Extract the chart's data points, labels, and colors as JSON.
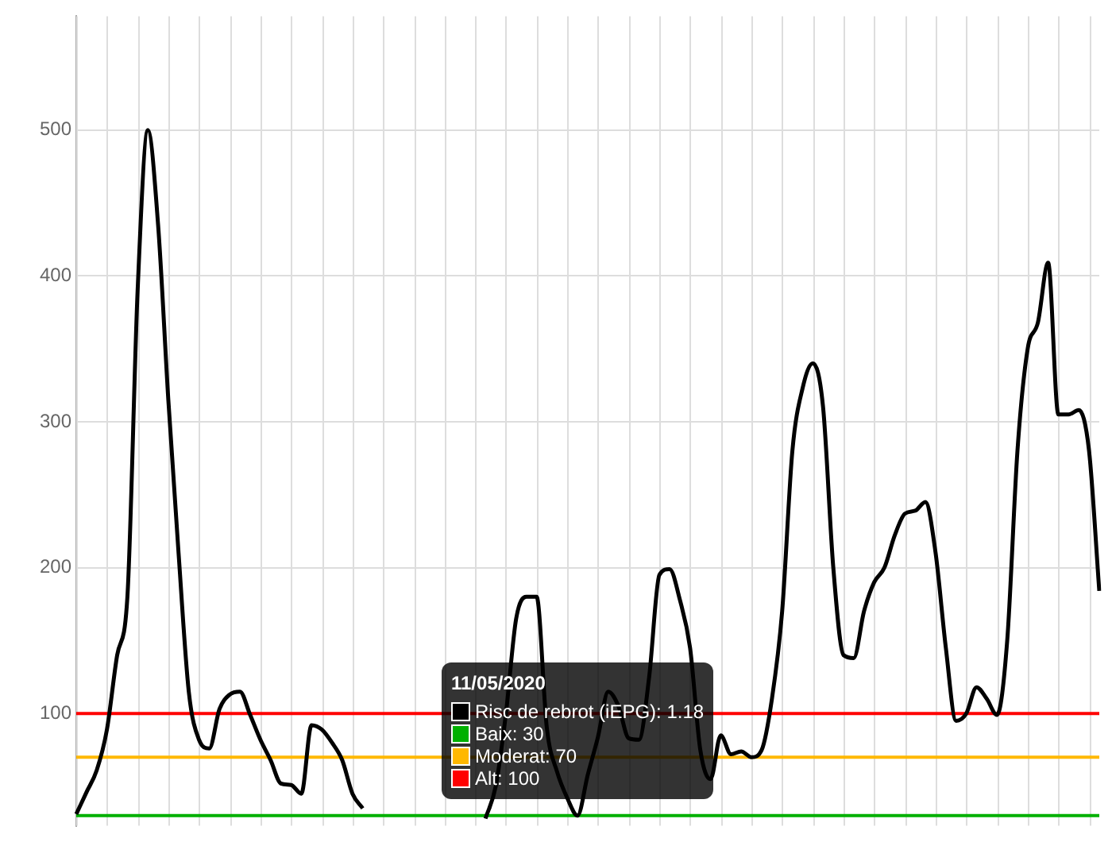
{
  "chart_data": {
    "type": "line",
    "categories": [
      null,
      null,
      null,
      null,
      null,
      null,
      null,
      null,
      null,
      null,
      null,
      null,
      null,
      null,
      null,
      null,
      null,
      null,
      null,
      null,
      null,
      null,
      null,
      null,
      null,
      null,
      null,
      null,
      null,
      null,
      null,
      null,
      null,
      null,
      null,
      null,
      null,
      null,
      null,
      null,
      null,
      null,
      null,
      null,
      null,
      null,
      null,
      null,
      null,
      null,
      null,
      null,
      null,
      null,
      null,
      null,
      null,
      null,
      null,
      null,
      null,
      null,
      null,
      null,
      null,
      null,
      null,
      null,
      null,
      null,
      null,
      null,
      null,
      null,
      null,
      null,
      null,
      null,
      null,
      null,
      null,
      null,
      null,
      null,
      null,
      null,
      null,
      null,
      null,
      null,
      null,
      null,
      null,
      null,
      null,
      null,
      null,
      null,
      null,
      null,
      null
    ],
    "series": [
      {
        "color": "#000000",
        "values": [
          31,
          46,
          61,
          89,
          140,
          180,
          390,
          500,
          435,
          315,
          210,
          115,
          82,
          76,
          103,
          113,
          115,
          99,
          82,
          68,
          52,
          51,
          45,
          92,
          89,
          80,
          68,
          45,
          35,
          null,
          null,
          null,
          null,
          null,
          null,
          null,
          null,
          null,
          null,
          null,
          null,
          null,
          null,
          null,
          null,
          null,
          null,
          null,
          null,
          null,
          null,
          null,
          null,
          null,
          null,
          null,
          null,
          null,
          null,
          null,
          null,
          null,
          null,
          null,
          null,
          null,
          null,
          null,
          null,
          null,
          null,
          null,
          null,
          null,
          null,
          null,
          null,
          null,
          null,
          null,
          null,
          null,
          null,
          null,
          null,
          null,
          null,
          null,
          null,
          null,
          null,
          null,
          null,
          null,
          null,
          null,
          null,
          null,
          null,
          null,
          null
        ]
      },
      {
        "color": "#000000",
        "values": [
          null,
          null,
          null,
          null,
          null,
          null,
          null,
          null,
          null,
          null,
          null,
          null,
          null,
          null,
          null,
          null,
          null,
          null,
          null,
          null,
          null,
          null,
          null,
          null,
          null,
          null,
          null,
          null,
          null,
          null,
          null,
          null,
          null,
          null,
          null,
          null,
          null,
          null,
          null,
          null,
          28,
          50,
          100,
          165,
          180,
          180,
          90,
          60,
          42,
          30,
          58,
          84,
          115,
          105,
          83,
          82,
          125,
          195,
          199,
          178,
          145,
          75,
          55,
          85,
          72,
          74,
          70,
          75,
          110,
          170,
          280,
          323,
          340,
          310,
          200,
          140,
          138,
          170,
          190,
          200,
          222,
          237,
          239,
          245,
          210,
          145,
          95,
          100,
          118,
          110,
          99,
          150,
          280,
          350,
          368,
          409,
          305,
          305,
          308,
          280,
          184
        ]
      }
    ],
    "ylim": [
      23,
      578
    ],
    "yticks": [
      100,
      200,
      300,
      400,
      500
    ],
    "grid": true,
    "tick_labels": "y",
    "marker": "none",
    "line_style": "solid",
    "ref_lines": [
      {
        "axis": "y",
        "value": 30,
        "color": "#00b000"
      },
      {
        "axis": "y",
        "value": 70,
        "color": "#ffb800"
      },
      {
        "axis": "y",
        "value": 100,
        "color": "#ff0000"
      }
    ],
    "annotations": [
      "11/05/2020",
      "Risc de rebrot (iEPG): 1.18",
      "Baix: 30",
      "Moderat: 70",
      "Alt: 100"
    ]
  }
}
